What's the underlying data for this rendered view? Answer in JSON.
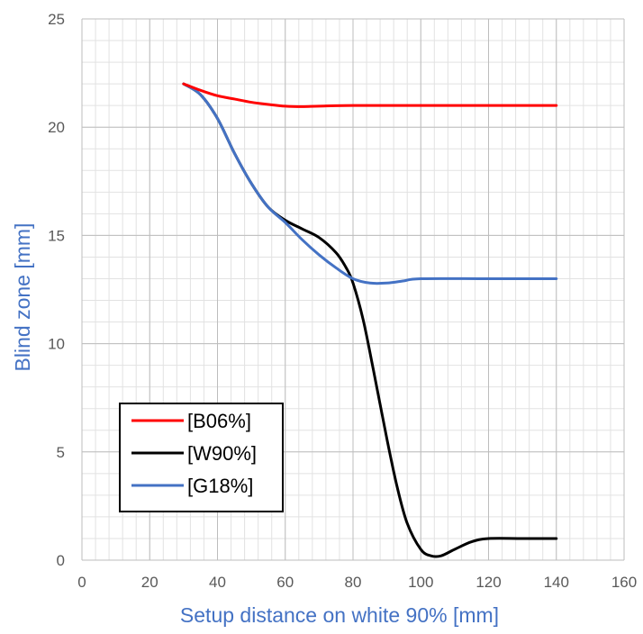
{
  "chart_data": {
    "type": "line",
    "title": "",
    "xlabel": "Setup distance on white 90% [mm]",
    "ylabel": "Blind zone [mm]",
    "xlim": [
      0,
      160
    ],
    "ylim": [
      0,
      25
    ],
    "x_major_ticks": [
      "0",
      "20",
      "40",
      "60",
      "80",
      "100",
      "120",
      "140",
      "160"
    ],
    "y_major_ticks": [
      "0",
      "5",
      "10",
      "15",
      "20",
      "25"
    ],
    "x_minor_step": 4,
    "y_minor_step": 1,
    "grid": true,
    "legend_position": "bottom-left",
    "series": [
      {
        "name": "[B06%]",
        "color": "#ff0000",
        "points": [
          [
            30,
            22
          ],
          [
            35,
            21.7
          ],
          [
            40,
            21.45
          ],
          [
            45,
            21.3
          ],
          [
            50,
            21.15
          ],
          [
            55,
            21.05
          ],
          [
            60,
            20.97
          ],
          [
            65,
            20.95
          ],
          [
            70,
            20.97
          ],
          [
            80,
            21
          ],
          [
            100,
            21
          ],
          [
            120,
            21
          ],
          [
            140,
            21
          ]
        ]
      },
      {
        "name": "[W90%]",
        "color": "#000000",
        "points": [
          [
            30,
            22
          ],
          [
            35,
            21.5
          ],
          [
            40,
            20.4
          ],
          [
            45,
            18.8
          ],
          [
            50,
            17.4
          ],
          [
            55,
            16.3
          ],
          [
            60,
            15.7
          ],
          [
            65,
            15.3
          ],
          [
            70,
            14.9
          ],
          [
            75,
            14.2
          ],
          [
            78,
            13.5
          ],
          [
            80,
            12.8
          ],
          [
            83,
            11.1
          ],
          [
            86,
            8.8
          ],
          [
            90,
            5.6
          ],
          [
            93,
            3.4
          ],
          [
            96,
            1.7
          ],
          [
            100,
            0.5
          ],
          [
            103,
            0.2
          ],
          [
            106,
            0.2
          ],
          [
            110,
            0.5
          ],
          [
            115,
            0.85
          ],
          [
            120,
            1
          ],
          [
            130,
            1
          ],
          [
            140,
            1
          ]
        ]
      },
      {
        "name": "[G18%]",
        "color": "#4472c4",
        "points": [
          [
            30,
            22
          ],
          [
            35,
            21.5
          ],
          [
            40,
            20.4
          ],
          [
            45,
            18.8
          ],
          [
            50,
            17.4
          ],
          [
            55,
            16.3
          ],
          [
            60,
            15.6
          ],
          [
            65,
            14.8
          ],
          [
            70,
            14.1
          ],
          [
            75,
            13.5
          ],
          [
            80,
            13.0
          ],
          [
            85,
            12.8
          ],
          [
            90,
            12.8
          ],
          [
            95,
            12.9
          ],
          [
            100,
            13
          ],
          [
            120,
            13
          ],
          [
            140,
            13
          ]
        ]
      }
    ]
  }
}
